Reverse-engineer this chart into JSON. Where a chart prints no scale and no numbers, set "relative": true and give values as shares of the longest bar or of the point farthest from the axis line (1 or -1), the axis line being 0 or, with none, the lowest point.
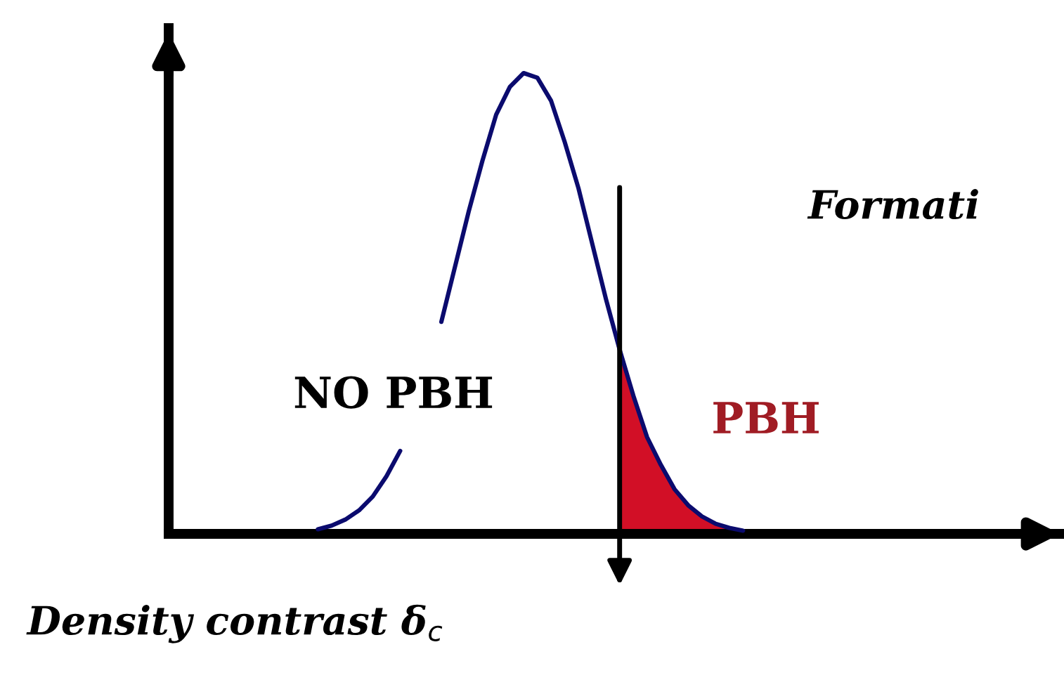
{
  "chart_data": {
    "type": "line",
    "relative": true,
    "grid": false,
    "legend": false,
    "xlabel": "Density contrast δ$_{c}$",
    "categories": [
      null,
      null,
      null,
      null,
      null,
      null,
      null,
      null,
      null,
      null,
      null,
      null,
      null,
      null,
      null,
      null,
      null,
      null,
      null,
      null,
      null,
      null,
      null,
      null,
      null,
      null,
      null,
      null,
      null,
      null,
      null,
      null
    ],
    "series": [
      {
        "color": "#0b0b6e",
        "values": [
          0.01,
          0.018,
          0.031,
          0.051,
          0.081,
          0.125,
          0.18,
          null,
          null,
          0.46,
          0.58,
          0.7,
          0.81,
          0.91,
          0.97,
          1.0,
          0.99,
          0.94,
          0.85,
          0.75,
          0.63,
          0.51,
          0.4,
          0.3,
          0.21,
          0.15,
          0.097,
          0.062,
          0.038,
          0.022,
          0.013,
          0.007
        ]
      },
      {
        "type": "area",
        "color": "#d20f26",
        "values": [
          null,
          null,
          null,
          null,
          null,
          null,
          null,
          null,
          null,
          null,
          null,
          null,
          null,
          null,
          null,
          null,
          null,
          null,
          null,
          null,
          null,
          null,
          0.4,
          0.3,
          0.21,
          0.15,
          0.097,
          0.062,
          0.038,
          0.022,
          0.013,
          0.007
        ]
      }
    ],
    "annotations": [
      "NO PBH",
      "PBH",
      "Formati"
    ]
  }
}
